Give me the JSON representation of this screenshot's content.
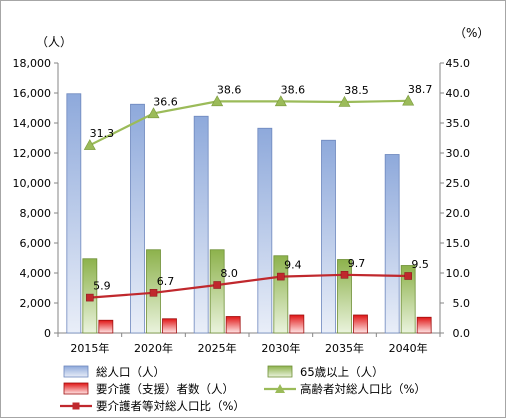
{
  "chart_data": {
    "type": "bar",
    "categories": [
      "2015年",
      "2020年",
      "2025年",
      "2030年",
      "2035年",
      "2040年"
    ],
    "y_left": {
      "unit_label": "（人）",
      "ylim": [
        0,
        18000
      ],
      "ticks": [
        "0",
        "2,000",
        "4,000",
        "6,000",
        "8,000",
        "10,000",
        "12,000",
        "14,000",
        "16,000",
        "18,000"
      ]
    },
    "y_right": {
      "unit_label": "（%）",
      "ylim": [
        0,
        45
      ],
      "ticks": [
        "0.0",
        "5.0",
        "10.0",
        "15.0",
        "20.0",
        "25.0",
        "30.0",
        "35.0",
        "40.0",
        "45.0"
      ]
    },
    "series": [
      {
        "name": "総人口（人）",
        "kind": "bar",
        "axis": "left",
        "values": [
          15950,
          15250,
          14450,
          13650,
          12850,
          11900
        ],
        "color": "#8ea9db"
      },
      {
        "name": "65歳以上（人）",
        "kind": "bar",
        "axis": "left",
        "values": [
          4950,
          5550,
          5550,
          5150,
          4900,
          4500
        ],
        "color": "#9bbb59"
      },
      {
        "name": "要介護（支援）者数（人）",
        "kind": "bar",
        "axis": "left",
        "values": [
          850,
          950,
          1100,
          1200,
          1200,
          1050
        ],
        "color": "#e02020"
      },
      {
        "name": "高齢者対総人口比（%）",
        "kind": "line",
        "axis": "right",
        "values": [
          31.3,
          36.6,
          38.6,
          38.6,
          38.5,
          38.7
        ],
        "labels": [
          "31.3",
          "36.6",
          "38.6",
          "38.6",
          "38.5",
          "38.7"
        ],
        "color": "#9bbb59",
        "marker": "triangle"
      },
      {
        "name": "要介護者等対総人口比（%）",
        "kind": "line",
        "axis": "right",
        "values": [
          5.9,
          6.7,
          8.0,
          9.4,
          9.7,
          9.5
        ],
        "labels": [
          "5.9",
          "6.7",
          "8.0",
          "9.4",
          "9.7",
          "9.5"
        ],
        "color": "#c0282d",
        "marker": "square"
      }
    ],
    "legend_position": "bottom",
    "grid": false
  }
}
